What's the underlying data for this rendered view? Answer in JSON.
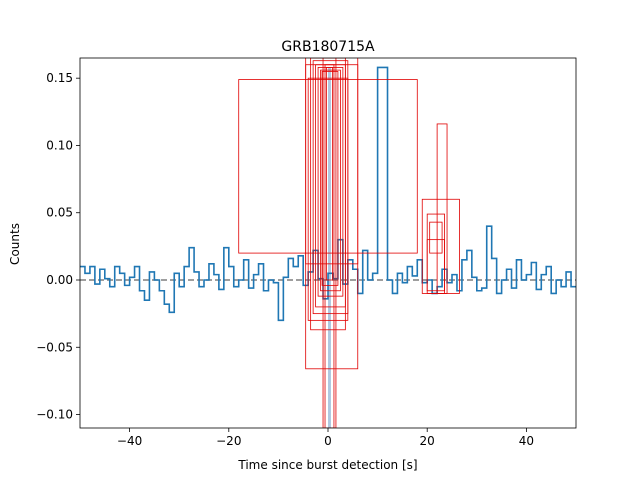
{
  "chart_data": {
    "type": "line",
    "title": "GRB180715A",
    "xlabel": "Time since burst detection [s]",
    "ylabel": "Counts",
    "xlim": [
      -50,
      50
    ],
    "ylim": [
      -0.11,
      0.165
    ],
    "xticks": [
      -40,
      -20,
      0,
      20,
      40
    ],
    "yticks": [
      -0.1,
      -0.05,
      0.0,
      0.05,
      0.1,
      0.15
    ],
    "xtick_labels": [
      "−40",
      "−20",
      "0",
      "20",
      "40"
    ],
    "ytick_labels": [
      "−0.10",
      "−0.05",
      "0.00",
      "0.05",
      "0.10",
      "0.15"
    ],
    "grid": false,
    "legend": false,
    "colors": {
      "lightcurve": "#1f77b4",
      "baseline": "#7f7f7f",
      "boxes": "#e00000",
      "burst_fill": "#b0c8e0"
    },
    "baseline_y": 0.0,
    "burst_band": {
      "x": [
        0.0,
        0.6
      ],
      "y": [
        -0.11,
        0.158
      ]
    },
    "lightcurve": {
      "bin_width": 1.0,
      "x_start": -50,
      "values": [
        0.01,
        0.005,
        0.01,
        -0.003,
        0.008,
        0.001,
        -0.005,
        0.01,
        0.005,
        -0.004,
        0.002,
        0.01,
        -0.008,
        -0.015,
        0.006,
        0.0,
        -0.008,
        -0.018,
        -0.024,
        0.005,
        -0.005,
        0.01,
        0.024,
        0.006,
        -0.005,
        0.0,
        0.012,
        0.004,
        -0.007,
        0.024,
        0.01,
        -0.005,
        0.0,
        0.015,
        -0.006,
        0.004,
        0.012,
        -0.008,
        0.0,
        -0.002,
        -0.03,
        0.002,
        0.016,
        0.01,
        0.018,
        -0.004,
        0.006,
        0.022,
        0.001,
        -0.014,
        0.005,
        0.001,
        0.03,
        -0.003,
        0.015,
        0.008,
        -0.01,
        0.022,
        0.0,
        0.005,
        0.158,
        0.158,
        0.0,
        -0.01,
        0.005,
        -0.002,
        0.01,
        0.003,
        0.015,
        -0.002,
        0.0,
        -0.01,
        -0.005,
        0.008,
        -0.002,
        0.004,
        -0.008,
        0.015,
        0.022,
        0.002,
        -0.008,
        -0.006,
        0.04,
        0.016,
        -0.01,
        0.0,
        0.008,
        -0.006,
        0.015,
        0.0,
        0.004,
        0.013,
        -0.007,
        0.004,
        0.01,
        -0.01,
        0.0,
        -0.005,
        0.006,
        -0.005
      ]
    },
    "boxes": [
      {
        "x": [
          -18,
          18
        ],
        "y": [
          0.02,
          0.149
        ]
      },
      {
        "x": [
          -4.5,
          6
        ],
        "y": [
          0.012,
          0.172
        ]
      },
      {
        "x": [
          -4.5,
          6
        ],
        "y": [
          -0.066,
          0.16
        ]
      },
      {
        "x": [
          -3.5,
          3.5
        ],
        "y": [
          -0.037,
          0.165
        ]
      },
      {
        "x": [
          -3,
          4
        ],
        "y": [
          -0.025,
          0.163
        ]
      },
      {
        "x": [
          -2.5,
          3.5
        ],
        "y": [
          -0.02,
          0.16
        ]
      },
      {
        "x": [
          -2,
          3
        ],
        "y": [
          -0.012,
          0.158
        ]
      },
      {
        "x": [
          -1.5,
          2.5
        ],
        "y": [
          -0.008,
          0.156
        ]
      },
      {
        "x": [
          -1.2,
          2
        ],
        "y": [
          -0.004,
          0.155
        ]
      },
      {
        "x": [
          -1,
          1.6
        ],
        "y": [
          -0.11,
          0.165
        ]
      },
      {
        "x": [
          -0.6,
          1.2
        ],
        "y": [
          -0.11,
          0.16
        ]
      },
      {
        "x": [
          -0.3,
          0.9
        ],
        "y": [
          0.0,
          0.158
        ]
      },
      {
        "x": [
          -4,
          4
        ],
        "y": [
          -0.03,
          0.15
        ]
      },
      {
        "x": [
          19,
          26.5
        ],
        "y": [
          -0.01,
          0.06
        ]
      },
      {
        "x": [
          20,
          23.5
        ],
        "y": [
          -0.01,
          0.049
        ]
      },
      {
        "x": [
          20.5,
          23
        ],
        "y": [
          0.02,
          0.043
        ]
      },
      {
        "x": [
          22,
          24
        ],
        "y": [
          -0.01,
          0.116
        ]
      },
      {
        "x": [
          20,
          23.5
        ],
        "y": [
          -0.008,
          0.03
        ]
      }
    ]
  }
}
